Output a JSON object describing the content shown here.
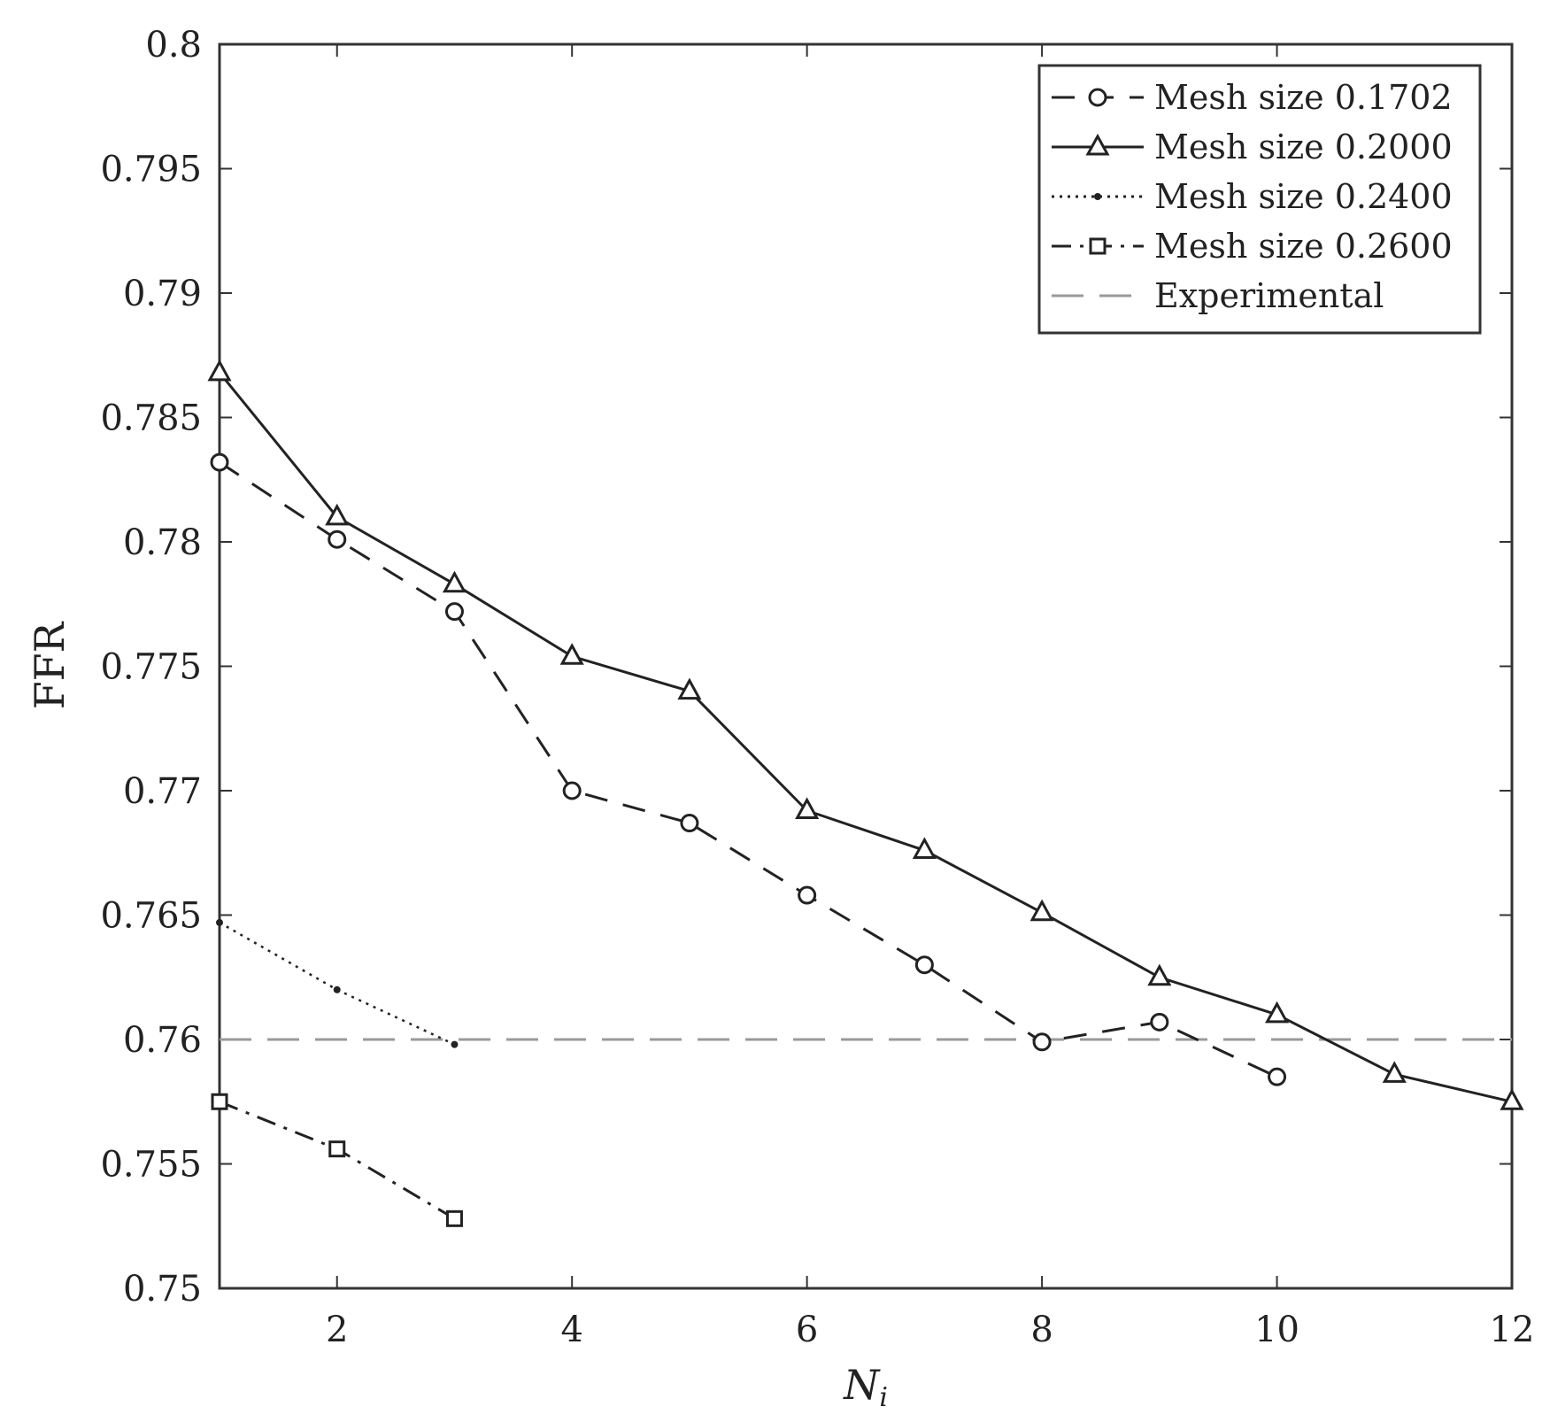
{
  "chart_data": {
    "type": "line",
    "xlabel": "N",
    "xlabel_sub": "i",
    "ylabel": "FFR",
    "xlim": [
      1,
      12
    ],
    "ylim": [
      0.75,
      0.8
    ],
    "xticks": [
      2,
      4,
      6,
      8,
      10,
      12
    ],
    "yticks": [
      0.75,
      0.755,
      0.76,
      0.765,
      0.77,
      0.775,
      0.78,
      0.785,
      0.79,
      0.795,
      0.8
    ],
    "grid": false,
    "legend_position": "top-right",
    "series": [
      {
        "name": "Mesh size 0.1702",
        "x": [
          1,
          2,
          3,
          4,
          5,
          6,
          7,
          8,
          9,
          10
        ],
        "y": [
          0.7832,
          0.7801,
          0.7772,
          0.77,
          0.7687,
          0.7658,
          0.763,
          0.7599,
          0.7607,
          0.7585
        ],
        "line": "dashed",
        "marker": "circle",
        "color": "#222222"
      },
      {
        "name": "Mesh size 0.2000",
        "x": [
          1,
          2,
          3,
          4,
          5,
          6,
          7,
          8,
          9,
          10,
          11,
          12
        ],
        "y": [
          0.7868,
          0.781,
          0.7783,
          0.7754,
          0.774,
          0.7692,
          0.7676,
          0.7651,
          0.7625,
          0.761,
          0.7586,
          0.7575
        ],
        "line": "solid",
        "marker": "triangle",
        "color": "#222222"
      },
      {
        "name": "Mesh size 0.2400",
        "x": [
          1,
          2,
          3
        ],
        "y": [
          0.7647,
          0.762,
          0.7598
        ],
        "line": "dotted",
        "marker": "point",
        "color": "#222222"
      },
      {
        "name": "Mesh size 0.2600",
        "x": [
          1,
          2,
          3
        ],
        "y": [
          0.7575,
          0.7556,
          0.7528
        ],
        "line": "dashdot",
        "marker": "square",
        "color": "#222222"
      },
      {
        "name": "Experimental",
        "x": [
          1,
          12
        ],
        "y": [
          0.76,
          0.76
        ],
        "line": "dashed",
        "marker": "none",
        "color": "#999999"
      }
    ]
  }
}
